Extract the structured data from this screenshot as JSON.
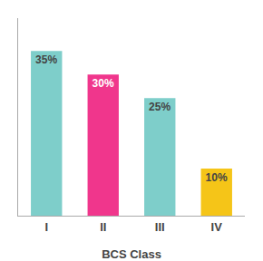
{
  "chart_data": {
    "type": "bar",
    "categories": [
      "I",
      "II",
      "III",
      "IV"
    ],
    "values": [
      35,
      30,
      25,
      10
    ],
    "value_labels": [
      "35%",
      "30%",
      "25%",
      "10%"
    ],
    "colors": [
      "#7ECECA",
      "#F0368C",
      "#7ECECA",
      "#F5C518"
    ],
    "xlabel": "BCS Class",
    "ylim": [
      0,
      42
    ],
    "grid": false,
    "data_labels": true,
    "tick_labels": "x"
  }
}
